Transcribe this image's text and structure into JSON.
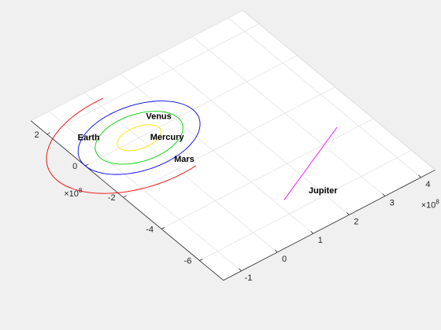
{
  "chart_data": {
    "type": "line",
    "view": "3d",
    "title": "",
    "xlabel": "",
    "ylabel": "",
    "grid": true,
    "x_axis": {
      "ticks": [
        -1,
        0,
        1,
        2,
        3,
        4
      ],
      "tick_labels": [
        "-1",
        "0",
        "1",
        "2",
        "3",
        "4"
      ],
      "exponent_label": "×10",
      "exponent_power": "8"
    },
    "y_axis": {
      "ticks": [
        -6,
        -4,
        -2,
        0,
        2
      ],
      "tick_labels": [
        "-6",
        "-4",
        "-2",
        "0",
        "2"
      ],
      "exponent_label": "×10",
      "exponent_power": "8"
    },
    "series": [
      {
        "name": "Mercury",
        "type": "ellipse",
        "semi_major": 0.55,
        "semi_minor": 0.5,
        "start_deg": 0,
        "end_deg": 360,
        "color": "#ffe000"
      },
      {
        "name": "Venus",
        "type": "ellipse",
        "semi_major": 1.08,
        "semi_minor": 1.08,
        "start_deg": 0,
        "end_deg": 360,
        "color": "#00d000"
      },
      {
        "name": "Earth",
        "type": "ellipse",
        "semi_major": 1.5,
        "semi_minor": 1.5,
        "start_deg": 0,
        "end_deg": 360,
        "color": "#0000ee"
      },
      {
        "name": "Mars",
        "type": "ellipse",
        "semi_major": 2.28,
        "semi_minor": 2.27,
        "start_deg": 85,
        "end_deg": 282,
        "color": "#ee0000"
      },
      {
        "name": "Jupiter",
        "type": "segment",
        "x": [
          1.2,
          3.6
        ],
        "y": [
          -5.35,
          -3.6
        ],
        "color": "#ff00ff"
      }
    ],
    "labels": [
      {
        "text": "Earth",
        "x": -1.1,
        "y": 1.15
      },
      {
        "text": "Venus",
        "x": 0.5,
        "y": 0.58
      },
      {
        "text": "Mercury",
        "x": 0.15,
        "y": -0.3
      },
      {
        "text": "Mars",
        "x": 0.1,
        "y": -1.65
      },
      {
        "text": "Jupiter",
        "x": 1.75,
        "y": -5.6
      }
    ]
  }
}
